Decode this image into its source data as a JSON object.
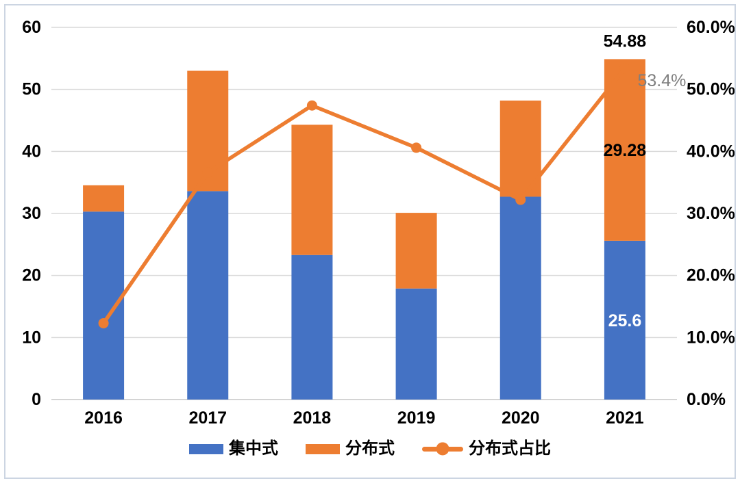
{
  "chart_data": {
    "type": "combo-stacked-bar-line",
    "categories": [
      "2016",
      "2017",
      "2018",
      "2019",
      "2020",
      "2021"
    ],
    "series": [
      {
        "name": "集中式",
        "type": "bar",
        "stack": "total",
        "axis": "left",
        "color": "#4472c4",
        "values": [
          30.3,
          33.6,
          23.3,
          17.9,
          32.7,
          25.6
        ]
      },
      {
        "name": "分布式",
        "type": "bar",
        "stack": "total",
        "axis": "left",
        "color": "#ed7d31",
        "values": [
          4.24,
          19.4,
          21.0,
          12.2,
          15.5,
          29.28
        ]
      },
      {
        "name": "分布式占比",
        "type": "line",
        "axis": "right",
        "color": "#ed7d31",
        "marker": "circle",
        "values": [
          12.3,
          36.6,
          47.4,
          40.6,
          32.2,
          53.4
        ]
      }
    ],
    "left_axis": {
      "min": 0,
      "max": 60,
      "step": 10,
      "ticks": [
        "60",
        "50",
        "40",
        "30",
        "20",
        "10",
        "0"
      ]
    },
    "right_axis": {
      "min": 0,
      "max": 60,
      "step": 10,
      "ticks": [
        "60.0%",
        "50.0%",
        "40.0%",
        "30.0%",
        "20.0%",
        "10.0%",
        "0.0%"
      ]
    },
    "grid": true,
    "gridline_color": "#d9d9d9",
    "axis_line_color": "#c6c6c6",
    "tick_label_color": "#000000",
    "annotations": [
      {
        "text": "54.88",
        "category": "2021",
        "placement": "above-total",
        "color": "#000000",
        "bold": true
      },
      {
        "text": "29.28",
        "category": "2021",
        "placement": "segment-center-upper",
        "color": "#000000",
        "bold": true
      },
      {
        "text": "25.6",
        "category": "2021",
        "placement": "segment-center-lower",
        "color": "#ffffff",
        "bold": true
      },
      {
        "text": "53.4%",
        "category": "2021",
        "placement": "right-of-line-point",
        "color": "#7f7f7f",
        "bold": false
      }
    ],
    "legend_position": "bottom",
    "background": "#ffffff",
    "border_color": "#ccd5e2"
  },
  "legend": {
    "items": [
      {
        "label": "集中式",
        "swatch": "bar",
        "color": "#4472c4"
      },
      {
        "label": "分布式",
        "swatch": "bar",
        "color": "#ed7d31"
      },
      {
        "label": "分布式占比",
        "swatch": "line",
        "color": "#ed7d31"
      }
    ]
  }
}
